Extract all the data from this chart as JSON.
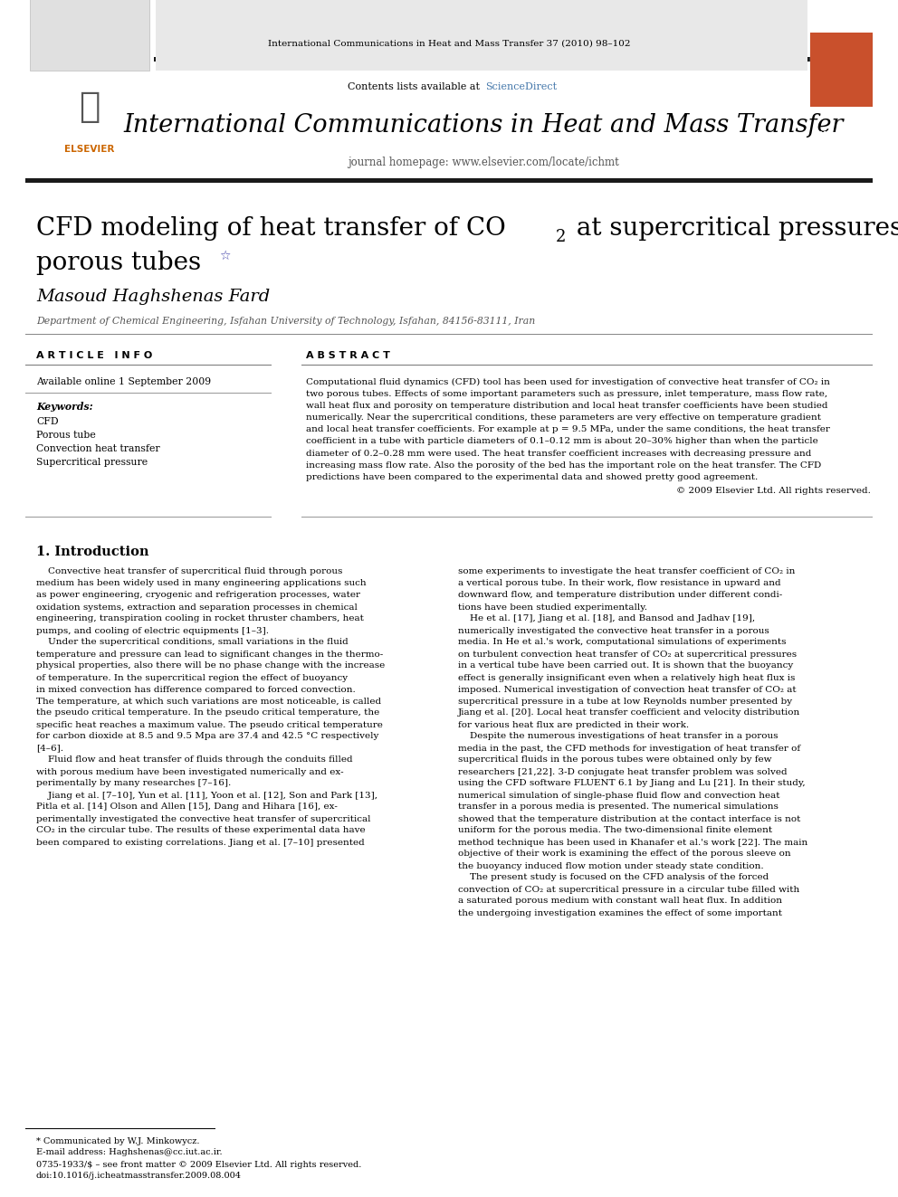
{
  "page_width": 9.92,
  "page_height": 13.23,
  "bg_color": "#ffffff",
  "journal_header_text": "International Communications in Heat and Mass Transfer 37 (2010) 98–102",
  "journal_header_color": "#000000",
  "header_bg_color": "#e8e8e8",
  "header_title": "International Communications in Heat and Mass Transfer",
  "header_subtitle": "journal homepage: www.elsevier.com/locate/ichmt",
  "contents_text": "Contents lists available at ",
  "science_direct_text": "ScienceDirect",
  "science_direct_color": "#4477aa",
  "paper_title_line1": "CFD modeling of heat transfer of CO",
  "paper_title_co2_sub": "2",
  "paper_title_line1_suffix": " at supercritical pressures flowing vertically in",
  "paper_title_line2": "porous tubes",
  "author_name": "Masoud Haghshenas Fard",
  "author_affiliation": "Department of Chemical Engineering, Isfahan University of Technology, Isfahan, 84156-83111, Iran",
  "article_info_header": "A R T I C L E   I N F O",
  "abstract_header": "A B S T R A C T",
  "available_online": "Available online 1 September 2009",
  "keywords_header": "Keywords:",
  "keywords": [
    "CFD",
    "Porous tube",
    "Convection heat transfer",
    "Supercritical pressure"
  ],
  "copyright_text": "© 2009 Elsevier Ltd. All rights reserved.",
  "footnote_line1": "* Communicated by W.J. Minkowycz.",
  "footnote_line2": "E-mail address: Haghshenas@cc.iut.ac.ir.",
  "footer_line1": "0735-1933/$ – see front matter © 2009 Elsevier Ltd. All rights reserved.",
  "footer_line2": "doi:10.1016/j.icheatmasstransfer.2009.08.004",
  "elsevier_orange": "#c9502c",
  "thick_bar_color": "#1a1a1a",
  "thin_line_color": "#555555",
  "abstract_lines": [
    "Computational fluid dynamics (CFD) tool has been used for investigation of convective heat transfer of CO₂ in",
    "two porous tubes. Effects of some important parameters such as pressure, inlet temperature, mass flow rate,",
    "wall heat flux and porosity on temperature distribution and local heat transfer coefficients have been studied",
    "numerically. Near the supercritical conditions, these parameters are very effective on temperature gradient",
    "and local heat transfer coefficients. For example at p = 9.5 MPa, under the same conditions, the heat transfer",
    "coefficient in a tube with particle diameters of 0.1–0.12 mm is about 20–30% higher than when the particle",
    "diameter of 0.2–0.28 mm were used. The heat transfer coefficient increases with decreasing pressure and",
    "increasing mass flow rate. Also the porosity of the bed has the important role on the heat transfer. The CFD",
    "predictions have been compared to the experimental data and showed pretty good agreement."
  ],
  "col1_lines": [
    "    Convective heat transfer of supercritical fluid through porous",
    "medium has been widely used in many engineering applications such",
    "as power engineering, cryogenic and refrigeration processes, water",
    "oxidation systems, extraction and separation processes in chemical",
    "engineering, transpiration cooling in rocket thruster chambers, heat",
    "pumps, and cooling of electric equipments [1–3].",
    "    Under the supercritical conditions, small variations in the fluid",
    "temperature and pressure can lead to significant changes in the thermo-",
    "physical properties, also there will be no phase change with the increase",
    "of temperature. In the supercritical region the effect of buoyancy",
    "in mixed convection has difference compared to forced convection.",
    "The temperature, at which such variations are most noticeable, is called",
    "the pseudo critical temperature. In the pseudo critical temperature, the",
    "specific heat reaches a maximum value. The pseudo critical temperature",
    "for carbon dioxide at 8.5 and 9.5 Mpa are 37.4 and 42.5 °C respectively",
    "[4–6].",
    "    Fluid flow and heat transfer of fluids through the conduits filled",
    "with porous medium have been investigated numerically and ex-",
    "perimentally by many researches [7–16].",
    "    Jiang et al. [7–10], Yun et al. [11], Yoon et al. [12], Son and Park [13],",
    "Pitla et al. [14] Olson and Allen [15], Dang and Hihara [16], ex-",
    "perimentally investigated the convective heat transfer of supercritical",
    "CO₂ in the circular tube. The results of these experimental data have",
    "been compared to existing correlations. Jiang et al. [7–10] presented"
  ],
  "col2_lines": [
    "some experiments to investigate the heat transfer coefficient of CO₂ in",
    "a vertical porous tube. In their work, flow resistance in upward and",
    "downward flow, and temperature distribution under different condi-",
    "tions have been studied experimentally.",
    "    He et al. [17], Jiang et al. [18], and Bansod and Jadhav [19],",
    "numerically investigated the convective heat transfer in a porous",
    "media. In He et al.'s work, computational simulations of experiments",
    "on turbulent convection heat transfer of CO₂ at supercritical pressures",
    "in a vertical tube have been carried out. It is shown that the buoyancy",
    "effect is generally insignificant even when a relatively high heat flux is",
    "imposed. Numerical investigation of convection heat transfer of CO₂ at",
    "supercritical pressure in a tube at low Reynolds number presented by",
    "Jiang et al. [20]. Local heat transfer coefficient and velocity distribution",
    "for various heat flux are predicted in their work.",
    "    Despite the numerous investigations of heat transfer in a porous",
    "media in the past, the CFD methods for investigation of heat transfer of",
    "supercritical fluids in the porous tubes were obtained only by few",
    "researchers [21,22]. 3-D conjugate heat transfer problem was solved",
    "using the CFD software FLUENT 6.1 by Jiang and Lu [21]. In their study,",
    "numerical simulation of single-phase fluid flow and convection heat",
    "transfer in a porous media is presented. The numerical simulations",
    "showed that the temperature distribution at the contact interface is not",
    "uniform for the porous media. The two-dimensional finite element",
    "method technique has been used in Khanafer et al.'s work [22]. The main",
    "objective of their work is examining the effect of the porous sleeve on",
    "the buoyancy induced flow motion under steady state condition.",
    "    The present study is focused on the CFD analysis of the forced",
    "convection of CO₂ at supercritical pressure in a circular tube filled with",
    "a saturated porous medium with constant wall heat flux. In addition",
    "the undergoing investigation examines the effect of some important"
  ]
}
